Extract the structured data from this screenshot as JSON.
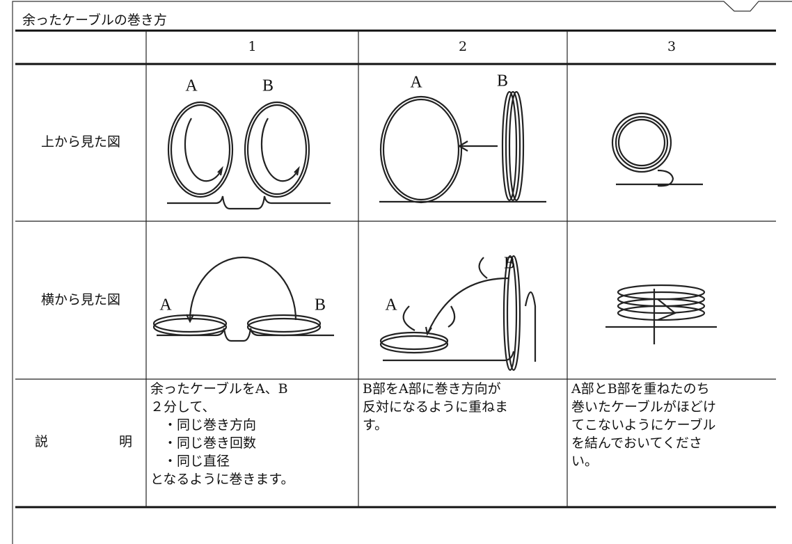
{
  "header": {
    "title": "余ったケーブルの巻き方"
  },
  "table": {
    "columns": [
      "1",
      "2",
      "3"
    ],
    "row_labels": [
      "上から見た図",
      "横から見た図",
      "説明"
    ],
    "figures": {
      "top": [
        [
          "A",
          "B"
        ],
        [
          "A",
          "B"
        ],
        []
      ],
      "side": [
        [
          "A",
          "B"
        ],
        [
          "A",
          "B"
        ],
        []
      ]
    },
    "descriptions": [
      [
        "余ったケーブルをA、B",
        "２分して、",
        "　・同じ巻き方向",
        "　・同じ巻き回数",
        "　・同じ直径",
        "となるように巻きます。"
      ],
      [
        "B部をA部に巻き方向が",
        "反対になるように重ねま",
        "す。"
      ],
      [
        "A部とB部を重ねたのち",
        "巻いたケーブルがほどけ",
        "てこないようにケーブル",
        "を結んでおいてくださ",
        "い。"
      ]
    ]
  }
}
